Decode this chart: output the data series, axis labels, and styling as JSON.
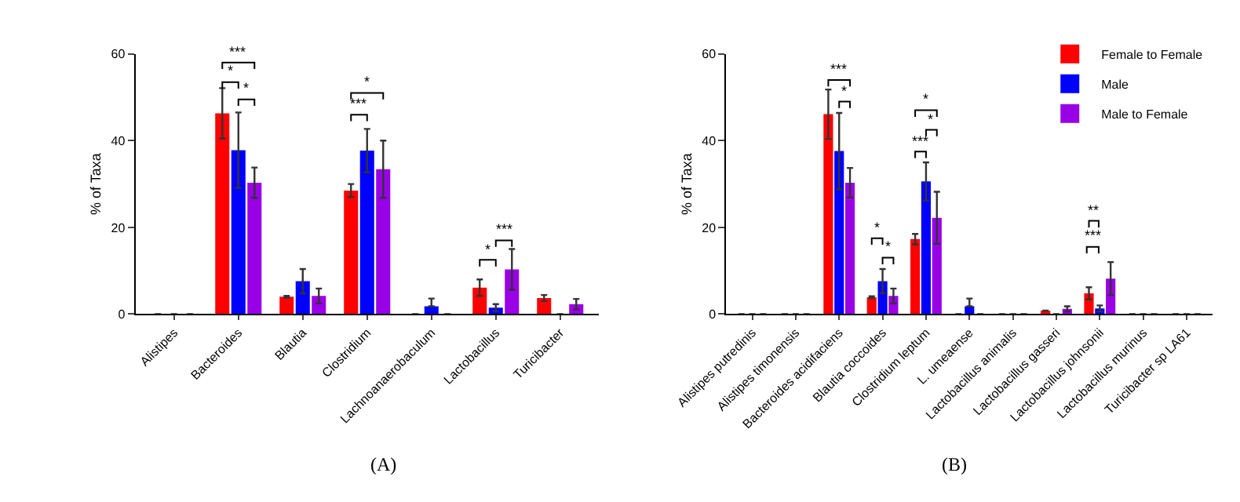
{
  "chart_data": [
    {
      "type": "bar",
      "ylabel": "% of Taxa",
      "ylim": [
        0,
        60
      ],
      "yticks": [
        0,
        20,
        40,
        60
      ],
      "legend": false,
      "categories": [
        "Alistipes",
        "Bacteroides",
        "Blautia",
        "Clostridium",
        "Lachnoanaerobaculum",
        "Lactobacillus",
        "Turicibacter"
      ],
      "series": [
        {
          "color": "#ff0000",
          "values": [
            0,
            46.3,
            4.0,
            28.5,
            0,
            6.1,
            3.7
          ],
          "errors": [
            null,
            5.8,
            0.2,
            1.5,
            null,
            1.9,
            0.7
          ]
        },
        {
          "color": "#0000ff",
          "values": [
            0,
            37.8,
            7.6,
            37.7,
            1.8,
            1.5,
            0
          ],
          "errors": [
            null,
            8.7,
            2.8,
            5.0,
            [
              1.8,
              3.6
            ],
            0.8,
            null
          ]
        },
        {
          "color": "#9900e6",
          "values": [
            0,
            30.3,
            4.2,
            33.4,
            0,
            10.3,
            2.3
          ],
          "errors": [
            null,
            3.5,
            1.7,
            6.6,
            null,
            4.7,
            1.2
          ]
        }
      ],
      "annotations": [
        "***",
        "*",
        "*",
        "*",
        "***",
        "***",
        "*",
        "(A)"
      ]
    },
    {
      "type": "bar",
      "ylabel": "% of Taxa",
      "ylim": [
        0,
        60
      ],
      "yticks": [
        0,
        20,
        40,
        60
      ],
      "legend": "top right",
      "categories": [
        "Alistipes putredinis",
        "Alistipes timonensis",
        "Bacteroides acidifaciens",
        "Blautia coccoides",
        "Clostridium leptum",
        "L. umeaense",
        "Lactobacillus animalis",
        "Lactobacillus gasseri",
        "Lactobacillus johnsonii",
        "Lactobacillus murinus",
        "Turicibacter sp LA61"
      ],
      "series": [
        {
          "name": "Female to Female",
          "color": "#ff0000",
          "values": [
            0,
            0,
            46.1,
            3.9,
            17.3,
            0,
            0,
            0.8,
            4.8,
            0,
            0
          ],
          "errors": [
            null,
            null,
            5.7,
            0.2,
            1.2,
            null,
            null,
            null,
            1.4,
            null,
            null
          ]
        },
        {
          "name": "Male",
          "color": "#0000ff",
          "values": [
            0,
            0,
            37.6,
            7.6,
            30.6,
            1.8,
            0,
            0,
            1.3,
            0,
            0
          ],
          "errors": [
            null,
            null,
            8.8,
            2.8,
            4.4,
            [
              1.8,
              3.6
            ],
            null,
            null,
            0.7,
            null,
            null
          ]
        },
        {
          "name": "Male to Female",
          "color": "#9900e6",
          "values": [
            0,
            0,
            30.3,
            4.2,
            22.2,
            0,
            0,
            1.2,
            8.2,
            0,
            0
          ],
          "errors": [
            null,
            null,
            3.4,
            1.7,
            6.0,
            null,
            null,
            0.6,
            3.8,
            null,
            null
          ]
        }
      ],
      "annotations": [
        "***",
        "*",
        "*",
        "*",
        "*",
        "*",
        "***",
        "**",
        "***",
        "(B)"
      ]
    }
  ]
}
